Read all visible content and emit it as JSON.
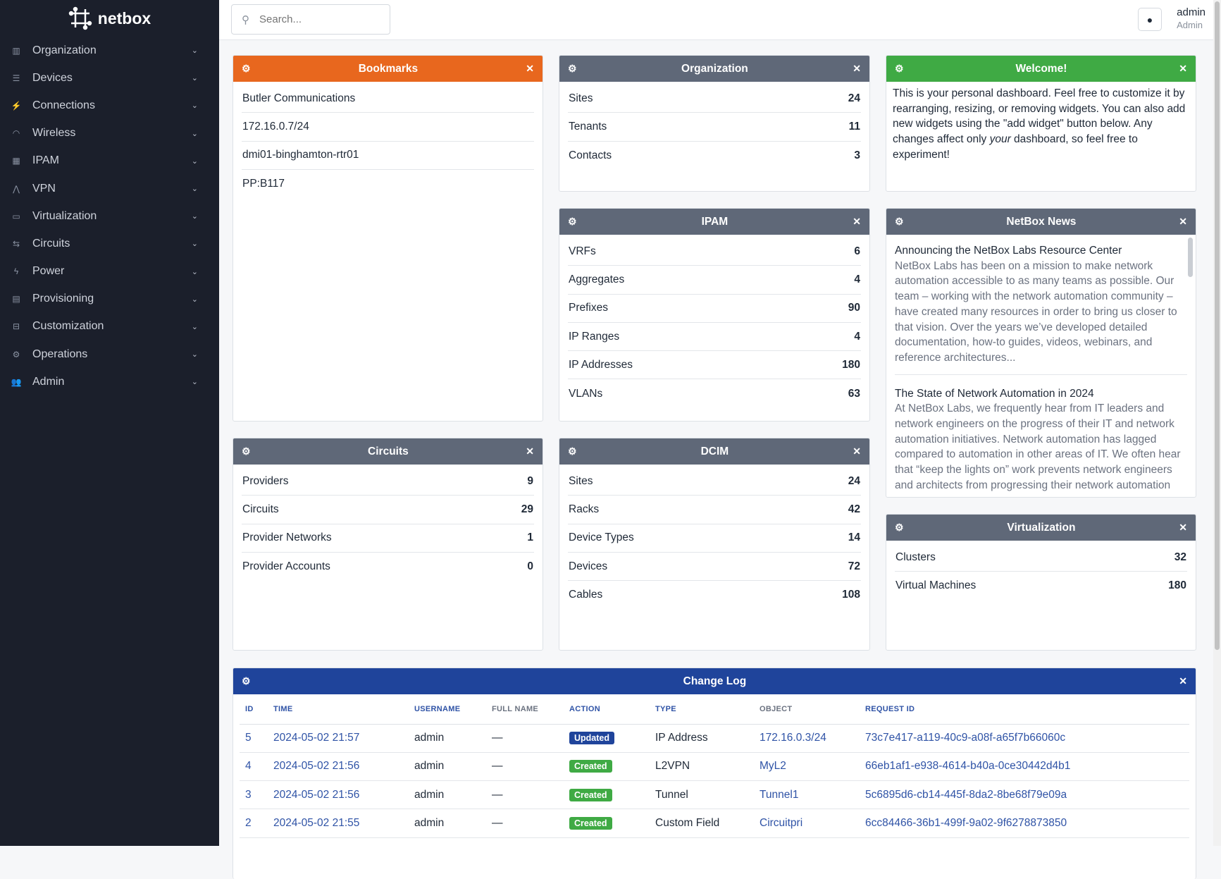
{
  "brand": "netbox",
  "sidebar": {
    "items": [
      {
        "label": "Organization",
        "icon": "building-icon",
        "glyph": "▥"
      },
      {
        "label": "Devices",
        "icon": "server-icon",
        "glyph": "☰"
      },
      {
        "label": "Connections",
        "icon": "plug-icon",
        "glyph": "⚡"
      },
      {
        "label": "Wireless",
        "icon": "wifi-icon",
        "glyph": "◠"
      },
      {
        "label": "IPAM",
        "icon": "ip-network-icon",
        "glyph": "▦"
      },
      {
        "label": "VPN",
        "icon": "tree-icon",
        "glyph": "⋀"
      },
      {
        "label": "Virtualization",
        "icon": "monitor-icon",
        "glyph": "▭"
      },
      {
        "label": "Circuits",
        "icon": "circuit-icon",
        "glyph": "⇆"
      },
      {
        "label": "Power",
        "icon": "lightning-icon",
        "glyph": "ϟ"
      },
      {
        "label": "Provisioning",
        "icon": "file-icon",
        "glyph": "▤"
      },
      {
        "label": "Customization",
        "icon": "toolbox-icon",
        "glyph": "⊟"
      },
      {
        "label": "Operations",
        "icon": "cogs-icon",
        "glyph": "⚙"
      },
      {
        "label": "Admin",
        "icon": "users-icon",
        "glyph": "👥"
      }
    ]
  },
  "header": {
    "search_placeholder": "Search...",
    "user": "admin",
    "role": "Admin"
  },
  "colors": {
    "bookmarks": "#e8671e",
    "welcome": "#3faa44",
    "gray": "#5f6878",
    "changelog": "#1f449b",
    "updated": "#1f449b",
    "created": "#3faa44"
  },
  "widgets": {
    "bookmarks": {
      "title": "Bookmarks",
      "items": [
        "Butler Communications",
        "172.16.0.7/24",
        "dmi01-binghamton-rtr01",
        "PP:B117"
      ]
    },
    "organization": {
      "title": "Organization",
      "rows": [
        [
          "Sites",
          "24"
        ],
        [
          "Tenants",
          "11"
        ],
        [
          "Contacts",
          "3"
        ]
      ]
    },
    "welcome": {
      "title": "Welcome!",
      "text_before": "This is your personal dashboard. Feel free to customize it by rearranging, resizing, or removing widgets. You can also add new widgets using the \"add widget\" button below. Any changes affect only ",
      "text_em": "your",
      "text_after": " dashboard, so feel free to experiment!"
    },
    "ipam": {
      "title": "IPAM",
      "rows": [
        [
          "VRFs",
          "6"
        ],
        [
          "Aggregates",
          "4"
        ],
        [
          "Prefixes",
          "90"
        ],
        [
          "IP Ranges",
          "4"
        ],
        [
          "IP Addresses",
          "180"
        ],
        [
          "VLANs",
          "63"
        ]
      ]
    },
    "news": {
      "title": "NetBox News",
      "items": [
        {
          "title": "Announcing the NetBox Labs Resource Center",
          "desc": "NetBox Labs has been on a mission to make network automation accessible to as many teams as possible. Our team – working with the network automation community – have created many resources in order to bring us closer to that vision. Over the years we’ve developed detailed documentation, how-to guides, videos, webinars, and reference architectures..."
        },
        {
          "title": "The State of Network Automation in 2024",
          "desc": "At NetBox Labs, we frequently hear from IT leaders and network engineers on the progress of their IT and network automation initiatives. Network automation has lagged compared to automation in other areas of IT. We often hear that “keep the lights on” work prevents network engineers and architects from progressing their network automation strategies."
        }
      ]
    },
    "circuits": {
      "title": "Circuits",
      "rows": [
        [
          "Providers",
          "9"
        ],
        [
          "Circuits",
          "29"
        ],
        [
          "Provider Networks",
          "1"
        ],
        [
          "Provider Accounts",
          "0"
        ]
      ]
    },
    "dcim": {
      "title": "DCIM",
      "rows": [
        [
          "Sites",
          "24"
        ],
        [
          "Racks",
          "42"
        ],
        [
          "Device Types",
          "14"
        ],
        [
          "Devices",
          "72"
        ],
        [
          "Cables",
          "108"
        ]
      ]
    },
    "virtualization": {
      "title": "Virtualization",
      "rows": [
        [
          "Clusters",
          "32"
        ],
        [
          "Virtual Machines",
          "180"
        ]
      ]
    },
    "changelog": {
      "title": "Change Log",
      "columns": [
        "ID",
        "TIME",
        "USERNAME",
        "FULL NAME",
        "ACTION",
        "TYPE",
        "OBJECT",
        "REQUEST ID"
      ],
      "rows": [
        [
          "5",
          "2024-05-02 21:57",
          "admin",
          "—",
          "Updated",
          "IP Address",
          "172.16.0.3/24",
          "73c7e417-a119-40c9-a08f-a65f7b66060c"
        ],
        [
          "4",
          "2024-05-02 21:56",
          "admin",
          "—",
          "Created",
          "L2VPN",
          "MyL2",
          "66eb1af1-e938-4614-b40a-0ce30442d4b1"
        ],
        [
          "3",
          "2024-05-02 21:56",
          "admin",
          "—",
          "Created",
          "Tunnel",
          "Tunnel1",
          "5c6895d6-cb14-445f-8da2-8be68f79e09a"
        ],
        [
          "2",
          "2024-05-02 21:55",
          "admin",
          "—",
          "Created",
          "Custom Field",
          "Circuitpri",
          "6cc84466-36b1-499f-9a02-9f6278873850"
        ]
      ]
    }
  }
}
